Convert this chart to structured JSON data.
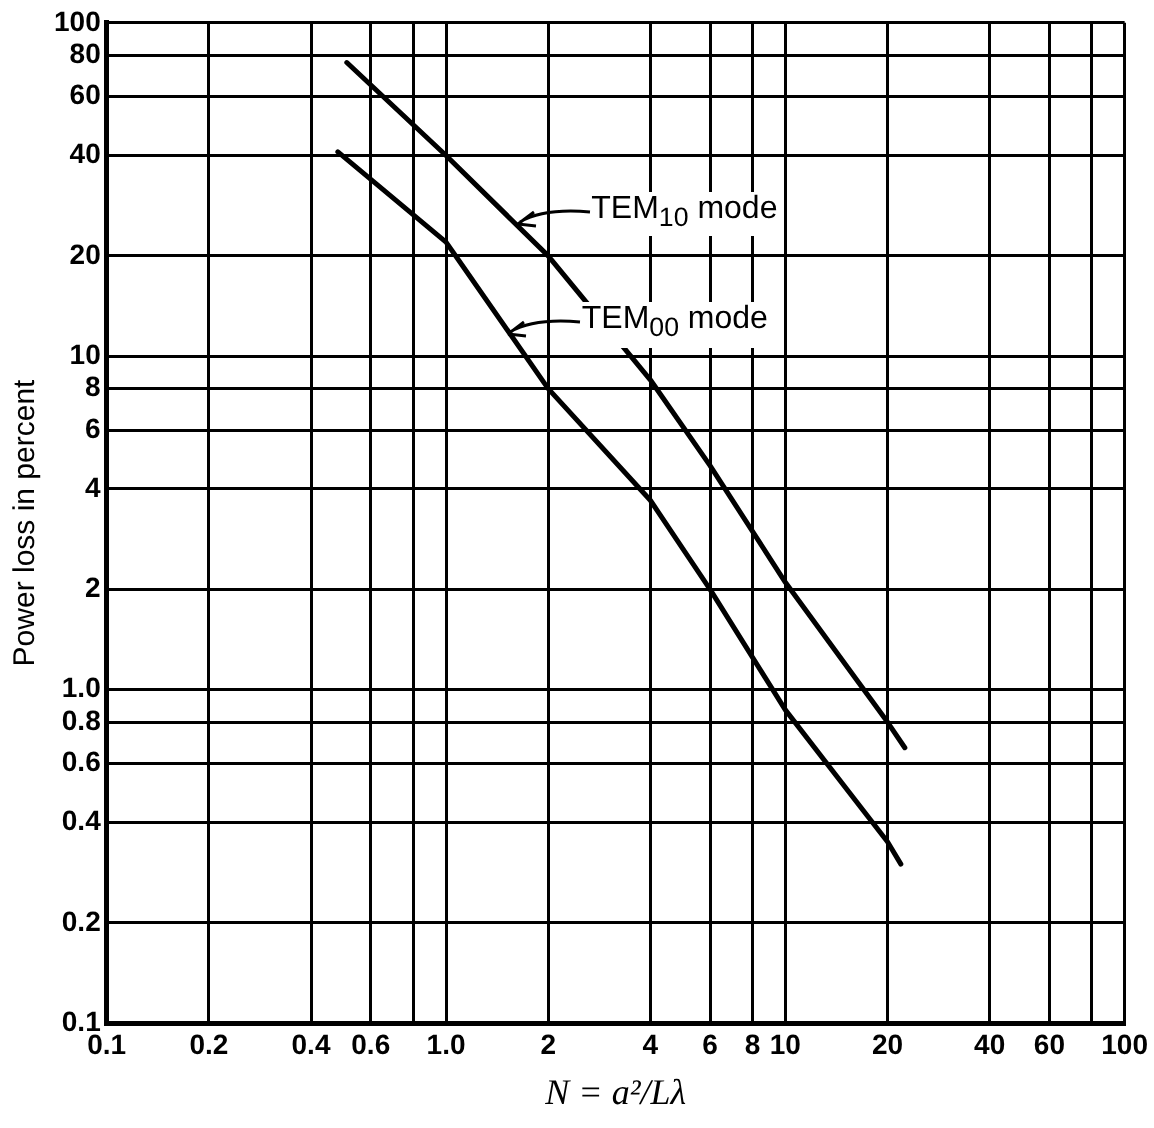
{
  "chart_data": {
    "type": "line",
    "xlabel": "N = a²/Lλ",
    "ylabel": "Power loss in percent",
    "log": "xy",
    "grid": true,
    "legend": false,
    "marker": "none",
    "line_style": "solid",
    "xlim": [
      0.1,
      100
    ],
    "ylim": [
      0.1,
      100
    ],
    "xticks": [
      0.1,
      0.2,
      0.4,
      0.6,
      {
        "value": 0.8,
        "label": null
      },
      {
        "value": 1,
        "label": "1.0"
      },
      2,
      4,
      6,
      8,
      10,
      20,
      40,
      60,
      {
        "value": 80,
        "label": null
      },
      100
    ],
    "yticks": [
      0.1,
      0.2,
      0.4,
      0.6,
      0.8,
      {
        "value": 1,
        "label": "1.0"
      },
      2,
      4,
      6,
      8,
      10,
      20,
      40,
      60,
      80,
      100
    ],
    "series": [
      {
        "color": "#000000",
        "x": [
          0.51,
          1,
          2,
          4,
          6,
          10,
          20,
          22.5
        ],
        "values": [
          76,
          40,
          20,
          8.5,
          4.7,
          2.1,
          0.8,
          0.67
        ]
      },
      {
        "color": "#000000",
        "x": [
          0.48,
          1,
          2,
          4,
          6,
          10,
          20,
          21.9
        ],
        "values": [
          41,
          22,
          8,
          3.7,
          2,
          0.87,
          0.35,
          0.3
        ]
      }
    ],
    "annotations": [
      {
        "text": "TEM$_{10}$ mode",
        "x": 1.6,
        "y": 25
      },
      {
        "text": "TEM$_{00}$ mode",
        "x": 1.5,
        "y": 11.6
      }
    ]
  }
}
